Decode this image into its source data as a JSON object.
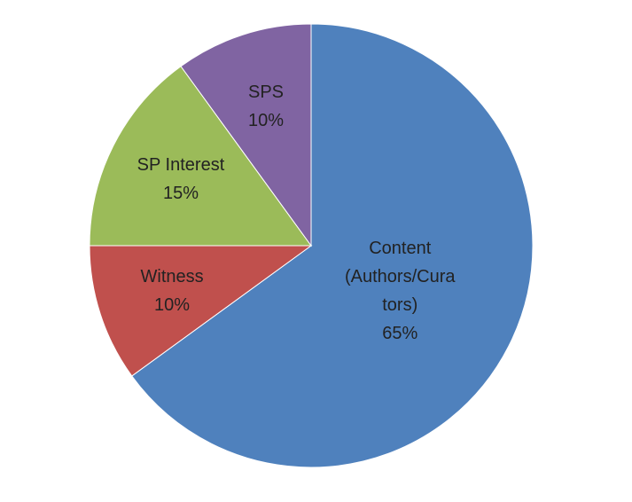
{
  "chart_data": {
    "type": "pie",
    "categories": [
      "Content (Authors/Curators)",
      "Witness",
      "SP Interest",
      "SPS"
    ],
    "values": [
      65,
      10,
      15,
      10
    ],
    "value_labels": [
      "65%",
      "10%",
      "15%",
      "10%"
    ],
    "colors": [
      "#4f81bd",
      "#c0504d",
      "#9bbb59",
      "#8064a2"
    ]
  }
}
